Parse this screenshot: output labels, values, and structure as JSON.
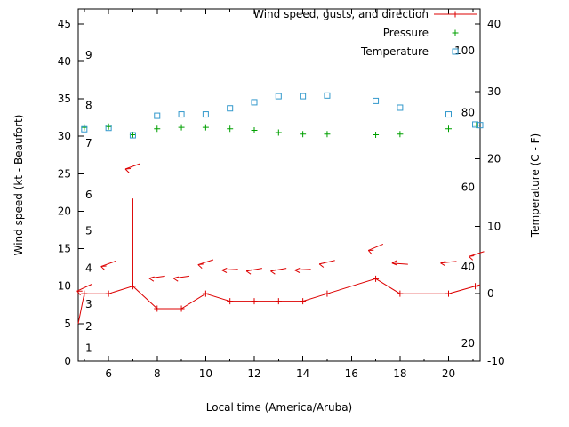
{
  "chart_data": {
    "type": "line",
    "title": "Wind speed, gusts, and direction",
    "x_axis": {
      "label": "Local time (America/Aruba)",
      "min": 4.75,
      "max": 21.3,
      "major_ticks": [
        6,
        8,
        10,
        12,
        14,
        16,
        18,
        20
      ],
      "minor_ticks": [
        5,
        7,
        9,
        11,
        13,
        15,
        17,
        19,
        21
      ]
    },
    "y1_axis": {
      "label": "Wind speed (kt - Beaufort)",
      "min": 0,
      "max": 47,
      "ticks": [
        0,
        5,
        10,
        15,
        20,
        25,
        30,
        35,
        40,
        45
      ]
    },
    "y2_axis": {
      "label": "Temperature (C - F)",
      "min": -10,
      "max": 42.24,
      "ticks": [
        -10,
        0,
        10,
        20,
        30,
        40
      ]
    },
    "inside_labels": {
      "beaufort_scale": [
        {
          "text": "1",
          "y": 1.7
        },
        {
          "text": "2",
          "y": 4.6
        },
        {
          "text": "3",
          "y": 7.6
        },
        {
          "text": "4",
          "y": 12.4
        },
        {
          "text": "5",
          "y": 17.4
        },
        {
          "text": "6",
          "y": 22.2
        },
        {
          "text": "7",
          "y": 29.1
        },
        {
          "text": "8",
          "y": 34.1
        },
        {
          "text": "9",
          "y": 40.8
        }
      ],
      "fahrenheit_scale": [
        {
          "text": "20",
          "y": 2.4
        },
        {
          "text": "40",
          "y": 12.6
        },
        {
          "text": "60",
          "y": 23.2
        },
        {
          "text": "80",
          "y": 33.2
        },
        {
          "text": "100",
          "y": 41.4
        }
      ]
    },
    "series": [
      {
        "name": "Wind speed, gusts, and direction",
        "color": "#dd0000",
        "axis": "y1",
        "marker": "plus",
        "style": "line-points",
        "line_x": [
          4.75,
          5,
          6,
          7,
          8,
          9,
          10,
          11,
          12,
          13,
          14,
          15,
          17,
          18,
          20,
          21.3
        ],
        "line_y": [
          5,
          9,
          9,
          10,
          7,
          7,
          9,
          8,
          8,
          8,
          8,
          9,
          11,
          9,
          9,
          10.2
        ],
        "point_x": [
          5,
          6,
          7,
          8,
          9,
          10,
          11,
          12,
          13,
          14,
          15,
          17,
          18,
          20,
          21.1
        ],
        "point_y": [
          9,
          9,
          10,
          7,
          7,
          9,
          8,
          8,
          8,
          8,
          9,
          11,
          9,
          9,
          10
        ],
        "gust_spikes": [
          {
            "x": 7,
            "y_from": 10,
            "y_to": 21.7
          }
        ],
        "direction_arrows": [
          {
            "x": 5,
            "y": 9.8,
            "angle": 205
          },
          {
            "x": 6,
            "y": 13,
            "angle": 200
          },
          {
            "x": 7,
            "y": 26,
            "angle": 200
          },
          {
            "x": 8,
            "y": 11.2,
            "angle": 188
          },
          {
            "x": 9,
            "y": 11.2,
            "angle": 188
          },
          {
            "x": 10,
            "y": 13.2,
            "angle": 198
          },
          {
            "x": 11,
            "y": 12.2,
            "angle": 183
          },
          {
            "x": 12,
            "y": 12.2,
            "angle": 190
          },
          {
            "x": 13,
            "y": 12.2,
            "angle": 190
          },
          {
            "x": 14,
            "y": 12.2,
            "angle": 183
          },
          {
            "x": 15,
            "y": 13.2,
            "angle": 193
          },
          {
            "x": 17,
            "y": 15.2,
            "angle": 203
          },
          {
            "x": 18,
            "y": 13,
            "angle": 176
          },
          {
            "x": 20,
            "y": 13.2,
            "angle": 186
          },
          {
            "x": 21.15,
            "y": 14.3,
            "angle": 198
          }
        ]
      },
      {
        "name": "Pressure",
        "color": "#00a000",
        "axis": "y1",
        "marker": "plus",
        "style": "points",
        "point_x": [
          5,
          6,
          7,
          8,
          9,
          10,
          11,
          12,
          13,
          14,
          15,
          17,
          18,
          20,
          21.15
        ],
        "point_y": [
          31.2,
          31.3,
          30.2,
          31,
          31.2,
          31.2,
          31,
          30.8,
          30.5,
          30.3,
          30.3,
          30.2,
          30.3,
          31,
          31.5
        ]
      },
      {
        "name": "Temperature",
        "color": "#3399cc",
        "axis": "y2",
        "marker": "open-square",
        "style": "points",
        "point_x": [
          5,
          6,
          7,
          8,
          9,
          10,
          11,
          12,
          13,
          14,
          15,
          17,
          18,
          20,
          21.1,
          21.3
        ],
        "point_y": [
          24.4,
          24.6,
          23.5,
          26.4,
          26.6,
          26.6,
          27.5,
          28.4,
          29.3,
          29.3,
          29.4,
          28.6,
          27.6,
          26.6,
          25.1,
          25.0
        ]
      }
    ],
    "layout_hints": {
      "legend_position": "top-right-inside",
      "grid": "off",
      "background": "#ffffff"
    }
  }
}
